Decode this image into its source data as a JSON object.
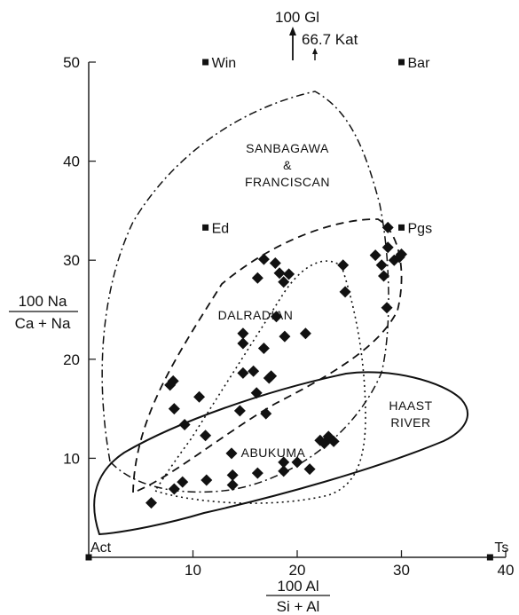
{
  "chart_data": {
    "type": "scatter",
    "xlabel": {
      "numerator": "100 Al",
      "denominator": "Si + Al"
    },
    "ylabel": {
      "numerator": "100 Na",
      "denominator": "Ca + Na"
    },
    "xlim": [
      0,
      40
    ],
    "ylim": [
      0,
      50
    ],
    "xticks": [
      "10",
      "20",
      "30",
      "40"
    ],
    "yticks": [
      "10",
      "20",
      "30",
      "40",
      "50"
    ],
    "grid": false,
    "top_annotations": {
      "gl": "100 Gl",
      "kat": "66.7 Kat"
    },
    "end_members": [
      {
        "label": "Act",
        "x": 0,
        "y": 0
      },
      {
        "label": "Ts",
        "x": 38.5,
        "y": 0
      },
      {
        "label": "Win",
        "x": 11.2,
        "y": 50
      },
      {
        "label": "Bar",
        "x": 30.0,
        "y": 50
      },
      {
        "label": "Ed",
        "x": 11.2,
        "y": 33.3
      },
      {
        "label": "Pgs",
        "x": 30.0,
        "y": 33.3
      }
    ],
    "fields": [
      {
        "label": [
          "SANBAGAWA",
          "&",
          "FRANCISCAN"
        ],
        "style": "dash-dot"
      },
      {
        "label": [
          "DALRADIAN"
        ],
        "style": "dashed"
      },
      {
        "label": [
          "ABUKUMA"
        ],
        "style": "dotted"
      },
      {
        "label": [
          "HAAST",
          "RIVER"
        ],
        "style": "solid"
      }
    ],
    "series": [
      {
        "marker": "diamond",
        "points": [
          [
            6.0,
            5.5
          ],
          [
            8.2,
            6.9
          ],
          [
            9.0,
            7.6
          ],
          [
            11.3,
            7.8
          ],
          [
            13.8,
            7.3
          ],
          [
            13.8,
            8.3
          ],
          [
            16.2,
            8.5
          ],
          [
            18.7,
            8.7
          ],
          [
            18.7,
            9.6
          ],
          [
            20.0,
            9.6
          ],
          [
            21.2,
            8.9
          ],
          [
            22.2,
            11.8
          ],
          [
            23.0,
            12.2
          ],
          [
            22.6,
            11.5
          ],
          [
            23.5,
            11.7
          ],
          [
            13.7,
            10.5
          ],
          [
            10.6,
            16.2
          ],
          [
            11.2,
            12.3
          ],
          [
            9.2,
            13.4
          ],
          [
            8.2,
            15.0
          ],
          [
            7.8,
            17.4
          ],
          [
            8.1,
            17.8
          ],
          [
            14.5,
            14.8
          ],
          [
            14.8,
            18.6
          ],
          [
            15.8,
            18.8
          ],
          [
            16.1,
            16.6
          ],
          [
            17.0,
            14.5
          ],
          [
            17.3,
            18.1
          ],
          [
            17.5,
            18.3
          ],
          [
            14.8,
            21.6
          ],
          [
            14.8,
            22.6
          ],
          [
            16.8,
            21.1
          ],
          [
            18.0,
            24.3
          ],
          [
            18.8,
            22.3
          ],
          [
            20.8,
            22.6
          ],
          [
            16.2,
            28.2
          ],
          [
            16.8,
            30.1
          ],
          [
            17.9,
            29.7
          ],
          [
            18.3,
            28.7
          ],
          [
            18.7,
            27.8
          ],
          [
            19.2,
            28.6
          ],
          [
            24.4,
            29.5
          ],
          [
            24.6,
            26.8
          ],
          [
            27.5,
            30.5
          ],
          [
            28.1,
            29.5
          ],
          [
            28.3,
            28.4
          ],
          [
            28.7,
            33.3
          ],
          [
            28.7,
            31.3
          ],
          [
            29.3,
            30.0
          ],
          [
            29.8,
            30.3
          ],
          [
            30.0,
            30.6
          ],
          [
            28.6,
            25.2
          ]
        ]
      }
    ]
  }
}
